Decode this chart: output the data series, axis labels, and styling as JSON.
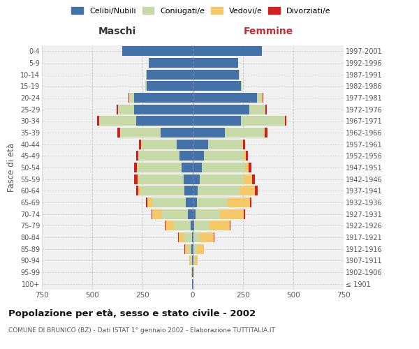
{
  "age_groups": [
    "100+",
    "95-99",
    "90-94",
    "85-89",
    "80-84",
    "75-79",
    "70-74",
    "65-69",
    "60-64",
    "55-59",
    "50-54",
    "45-49",
    "40-44",
    "35-39",
    "30-34",
    "25-29",
    "20-24",
    "15-19",
    "10-14",
    "5-9",
    "0-4"
  ],
  "birth_years": [
    "≤ 1901",
    "1902-1906",
    "1907-1911",
    "1912-1916",
    "1917-1921",
    "1922-1926",
    "1927-1931",
    "1932-1936",
    "1937-1941",
    "1942-1946",
    "1947-1951",
    "1952-1956",
    "1957-1961",
    "1962-1966",
    "1967-1971",
    "1972-1976",
    "1977-1981",
    "1982-1986",
    "1987-1991",
    "1992-1996",
    "1997-2001"
  ],
  "colors": {
    "celibi": "#4472a8",
    "coniugati": "#c8d9a8",
    "vedovi": "#f5c869",
    "divorziati": "#d02020"
  },
  "male": {
    "celibi": [
      2,
      2,
      4,
      6,
      5,
      10,
      25,
      35,
      40,
      45,
      55,
      65,
      80,
      160,
      280,
      290,
      290,
      230,
      230,
      220,
      350
    ],
    "coniugati": [
      0,
      2,
      5,
      18,
      40,
      85,
      130,
      165,
      220,
      225,
      220,
      205,
      175,
      200,
      185,
      80,
      25,
      5,
      2,
      0,
      0
    ],
    "vedovi": [
      0,
      2,
      8,
      15,
      25,
      40,
      45,
      25,
      10,
      5,
      3,
      2,
      2,
      2,
      2,
      2,
      2,
      0,
      0,
      0,
      0
    ],
    "divorziati": [
      0,
      0,
      0,
      2,
      2,
      3,
      5,
      8,
      12,
      15,
      12,
      10,
      10,
      12,
      10,
      5,
      2,
      0,
      0,
      0,
      0
    ]
  },
  "female": {
    "nubili": [
      2,
      2,
      5,
      5,
      5,
      8,
      15,
      20,
      25,
      35,
      45,
      55,
      75,
      160,
      240,
      280,
      320,
      240,
      230,
      225,
      345
    ],
    "coniugate": [
      0,
      2,
      5,
      15,
      30,
      75,
      120,
      155,
      210,
      220,
      215,
      200,
      170,
      195,
      215,
      80,
      25,
      5,
      2,
      0,
      0
    ],
    "vedove": [
      0,
      3,
      15,
      35,
      70,
      100,
      120,
      110,
      75,
      40,
      18,
      8,
      5,
      3,
      2,
      2,
      2,
      0,
      0,
      0,
      0
    ],
    "divorziate": [
      0,
      0,
      0,
      2,
      2,
      3,
      5,
      8,
      12,
      15,
      14,
      12,
      12,
      14,
      10,
      5,
      2,
      0,
      0,
      0,
      0
    ]
  },
  "title": "Popolazione per età, sesso e stato civile - 2002",
  "subtitle": "COMUNE DI BRUNICO (BZ) - Dati ISTAT 1° gennaio 2002 - Elaborazione TUTTITALIA.IT",
  "xlabel_left": "Maschi",
  "xlabel_right": "Femmine",
  "ylabel_left": "Fasce di età",
  "xlim": 750,
  "bg_color": "#ffffff",
  "plot_bg": "#f0f0f0",
  "grid_color": "#cccccc"
}
